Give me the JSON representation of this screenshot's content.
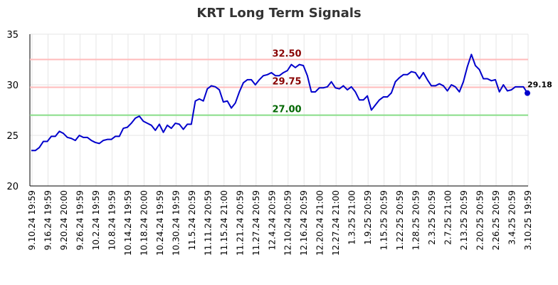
{
  "chart_data": {
    "type": "line",
    "title": "KRT Long Term Signals",
    "xlabel": "",
    "ylabel": "",
    "ylim": [
      20,
      35
    ],
    "yticks": [
      20,
      25,
      30,
      35
    ],
    "grid": true,
    "x_tick_labels": [
      "9.10.24 19:59",
      "9.16.24 19:59",
      "9.20.24 20:00",
      "9.26.24 19:59",
      "10.2.24 19:59",
      "10.8.24 19:59",
      "10.14.24 19:59",
      "10.18.24 20:00",
      "10.24.24 19:59",
      "10.30.24 19:59",
      "11.5.24 20:59",
      "11.11.24 20:59",
      "11.15.24 21:00",
      "11.21.24 20:59",
      "11.27.24 20:59",
      "12.4.24 20:59",
      "12.10.24 20:59",
      "12.16.24 20:59",
      "12.20.24 21:00",
      "12.27.24 21:00",
      "1.3.25 21:00",
      "1.9.25 20:59",
      "1.15.25 20:59",
      "1.22.25 20:59",
      "1.28.25 20:59",
      "2.3.25 20:59",
      "2.7.25 21:00",
      "2.13.25 20:59",
      "2.20.25 20:59",
      "2.26.25 20:59",
      "3.4.25 20:59",
      "3.10.25 19:59"
    ],
    "series": [
      {
        "color": "#0000cc",
        "values": [
          23.5,
          23.5,
          23.8,
          24.4,
          24.4,
          24.9,
          24.9,
          25.4,
          25.2,
          24.8,
          24.7,
          24.5,
          25.0,
          24.8,
          24.8,
          24.5,
          24.3,
          24.2,
          24.5,
          24.6,
          24.6,
          24.9,
          24.9,
          25.7,
          25.8,
          26.2,
          26.7,
          26.9,
          26.4,
          26.2,
          26.0,
          25.5,
          26.1,
          25.3,
          26.0,
          25.7,
          26.2,
          26.1,
          25.6,
          26.1,
          26.1,
          28.4,
          28.6,
          28.4,
          29.6,
          29.9,
          29.8,
          29.5,
          28.3,
          28.4,
          27.7,
          28.2,
          29.3,
          30.2,
          30.5,
          30.5,
          30.0,
          30.5,
          30.9,
          31.0,
          31.2,
          30.9,
          30.9,
          31.2,
          31.4,
          32.0,
          31.7,
          32.0,
          31.9,
          30.9,
          29.3,
          29.3,
          29.7,
          29.7,
          29.8,
          30.3,
          29.7,
          29.6,
          29.9,
          29.5,
          29.8,
          29.3,
          28.5,
          28.5,
          28.9,
          27.5,
          28.0,
          28.5,
          28.8,
          28.8,
          29.2,
          30.3,
          30.7,
          31.0,
          31.0,
          31.3,
          31.2,
          30.6,
          31.2,
          30.5,
          29.9,
          29.9,
          30.1,
          29.9,
          29.4,
          30.0,
          29.8,
          29.3,
          30.3,
          31.8,
          33.0,
          31.9,
          31.5,
          30.6,
          30.6,
          30.4,
          30.5,
          29.3,
          30.0,
          29.4,
          29.5,
          29.8,
          29.8,
          29.8,
          29.18
        ]
      }
    ],
    "reference_lines": [
      {
        "value": 32.5,
        "label": "32.50",
        "line_color": "#ffbbbb",
        "label_color": "#880000"
      },
      {
        "value": 29.75,
        "label": "29.75",
        "line_color": "#ffbbbb",
        "label_color": "#880000"
      },
      {
        "value": 27.0,
        "label": "27.00",
        "line_color": "#88dd88",
        "label_color": "#006600"
      }
    ],
    "last_point_label": "29.18"
  }
}
